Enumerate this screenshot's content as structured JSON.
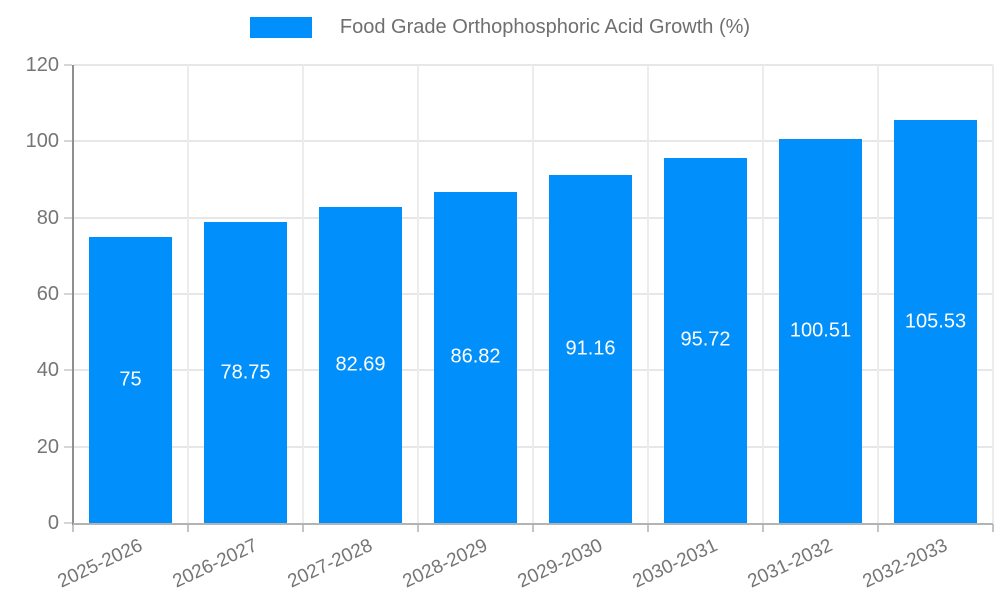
{
  "chart_data": {
    "type": "bar",
    "title": "Food Grade Orthophosphoric Acid Growth (%)",
    "categories": [
      "2025-2026",
      "2026-2027",
      "2027-2028",
      "2028-2029",
      "2029-2030",
      "2030-2031",
      "2031-2032",
      "2032-2033"
    ],
    "values": [
      75,
      78.75,
      82.69,
      86.82,
      91.16,
      95.72,
      100.51,
      105.53
    ],
    "value_labels": [
      "75",
      "78.75",
      "82.69",
      "86.82",
      "91.16",
      "95.72",
      "100.51",
      "105.53"
    ],
    "xlabel": "",
    "ylabel": "",
    "ylim": [
      0,
      120
    ],
    "y_ticks": [
      0,
      20,
      40,
      60,
      80,
      100,
      120
    ],
    "grid": "on",
    "legend_position": "top-center",
    "colors": {
      "bar": "#008FFB",
      "grid": "#e7e7e7",
      "axis_line": "#8f8f8f",
      "x_axis_line": "#b3b3b3",
      "axis_text": "#757575",
      "legend_text": "#6f6f6f",
      "bar_label_text": "#ffffff"
    }
  }
}
